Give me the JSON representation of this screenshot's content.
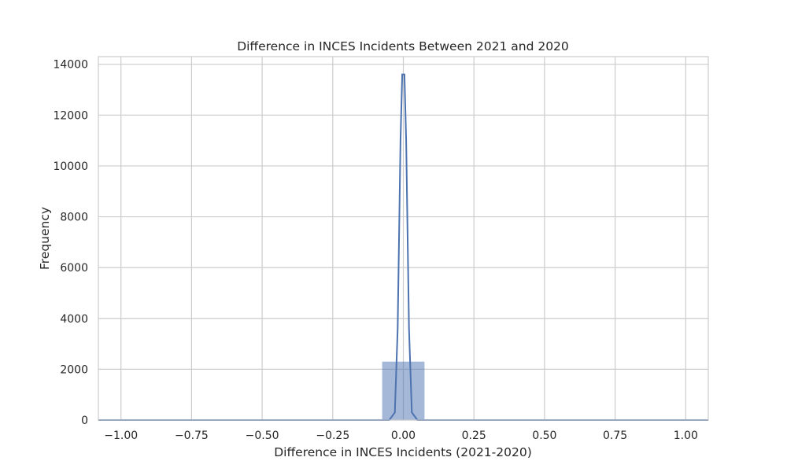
{
  "chart_data": {
    "type": "bar",
    "title": "Difference in INCES Incidents Between 2021 and 2020",
    "xlabel": "Difference in INCES Incidents (2021-2020)",
    "ylabel": "Frequency",
    "xlim": [
      -1.08,
      1.08
    ],
    "ylim": [
      0,
      14300
    ],
    "xticks": [
      -1.0,
      -0.75,
      -0.5,
      -0.25,
      0.0,
      0.25,
      0.5,
      0.75,
      1.0
    ],
    "xtick_labels": [
      "−1.00",
      "−0.75",
      "−0.50",
      "−0.25",
      "0.00",
      "0.25",
      "0.50",
      "0.75",
      "1.00"
    ],
    "yticks": [
      0,
      2000,
      4000,
      6000,
      8000,
      10000,
      12000,
      14000
    ],
    "ytick_labels": [
      "0",
      "2000",
      "4000",
      "6000",
      "8000",
      "10000",
      "12000",
      "14000"
    ],
    "grid": true,
    "bars": [
      {
        "x0": -1.0,
        "x1": -0.98,
        "value": 15
      },
      {
        "x0": -0.075,
        "x1": 0.075,
        "value": 2300
      },
      {
        "x0": 0.98,
        "x1": 1.0,
        "value": 15
      }
    ],
    "kde": {
      "x": [
        -1.08,
        -0.05,
        -0.03,
        -0.02,
        -0.01,
        -0.004,
        0.004,
        0.01,
        0.02,
        0.03,
        0.05,
        1.08
      ],
      "y": [
        0,
        0,
        300,
        3600,
        11000,
        13600,
        13600,
        11000,
        3600,
        300,
        0,
        0
      ]
    },
    "colors": {
      "bar_fill": "#4c72b0",
      "line": "#4c72b0",
      "grid": "#cccccc",
      "axes_edge": "#cccccc",
      "text": "#262626"
    }
  }
}
